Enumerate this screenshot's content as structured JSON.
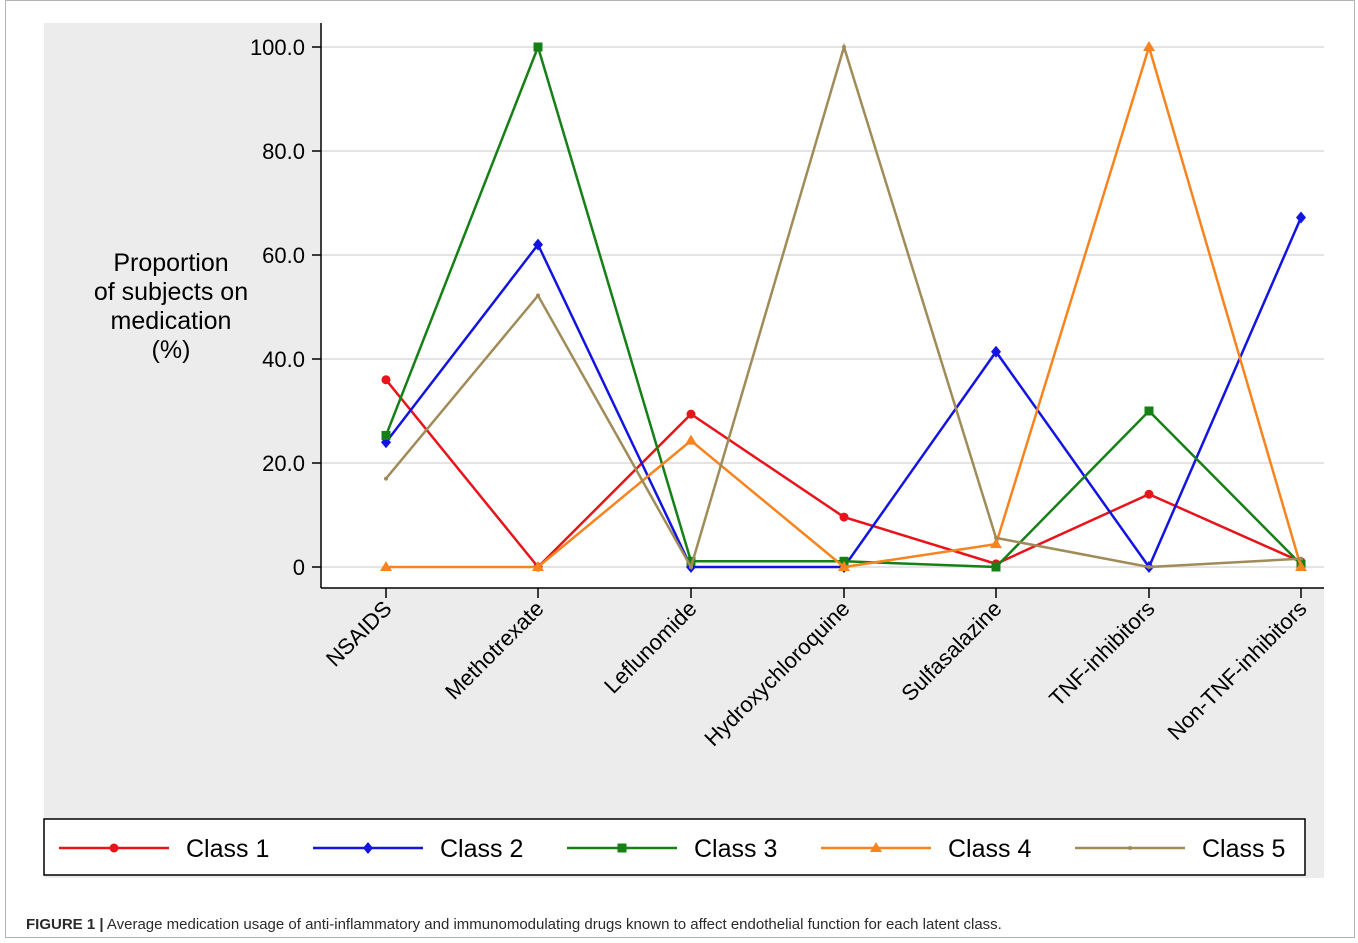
{
  "chart_data": {
    "type": "line",
    "ylabel": [
      "Proportion",
      "of subjects on",
      "medication",
      "(%)"
    ],
    "categories": [
      "NSAIDS",
      "Methotrexate",
      "Leflunomide",
      "Hydroxychloroquine",
      "Sulfasalazine",
      "TNF-inhibitors",
      "Non-TNF-inhibitors"
    ],
    "ylim": [
      0,
      100
    ],
    "yticks": [
      0,
      20,
      40,
      60,
      80,
      100
    ],
    "ytick_labels": [
      "0",
      "20.0",
      "40.0",
      "60.0",
      "80.0",
      "100.0"
    ],
    "grid": true,
    "legend_position": "bottom",
    "series": [
      {
        "name": "Class 1",
        "color": "#e8141c",
        "marker": "circle",
        "values": [
          36.0,
          0.0,
          29.4,
          9.6,
          0.6,
          14.0,
          1.0
        ]
      },
      {
        "name": "Class 2",
        "color": "#1414e0",
        "marker": "diamond",
        "values": [
          24.0,
          62.0,
          0.0,
          0.0,
          41.4,
          0.0,
          67.2
        ]
      },
      {
        "name": "Class 3",
        "color": "#168016",
        "marker": "square",
        "values": [
          25.3,
          100.0,
          1.1,
          1.1,
          0.0,
          30.0,
          0.5
        ]
      },
      {
        "name": "Class 4",
        "color": "#f7841e",
        "marker": "triangle",
        "values": [
          0.0,
          0.0,
          24.3,
          0.0,
          4.4,
          100.0,
          0.0
        ]
      },
      {
        "name": "Class 5",
        "color": "#a08c58",
        "marker": "dot",
        "values": [
          17.0,
          52.2,
          0.0,
          100.0,
          5.6,
          0.0,
          1.6
        ]
      }
    ]
  },
  "caption": {
    "label": "FIGURE 1 |",
    "text": " Average medication usage of anti-inflammatory and immunomodulating drugs known to affect endothelial function for each latent class."
  }
}
